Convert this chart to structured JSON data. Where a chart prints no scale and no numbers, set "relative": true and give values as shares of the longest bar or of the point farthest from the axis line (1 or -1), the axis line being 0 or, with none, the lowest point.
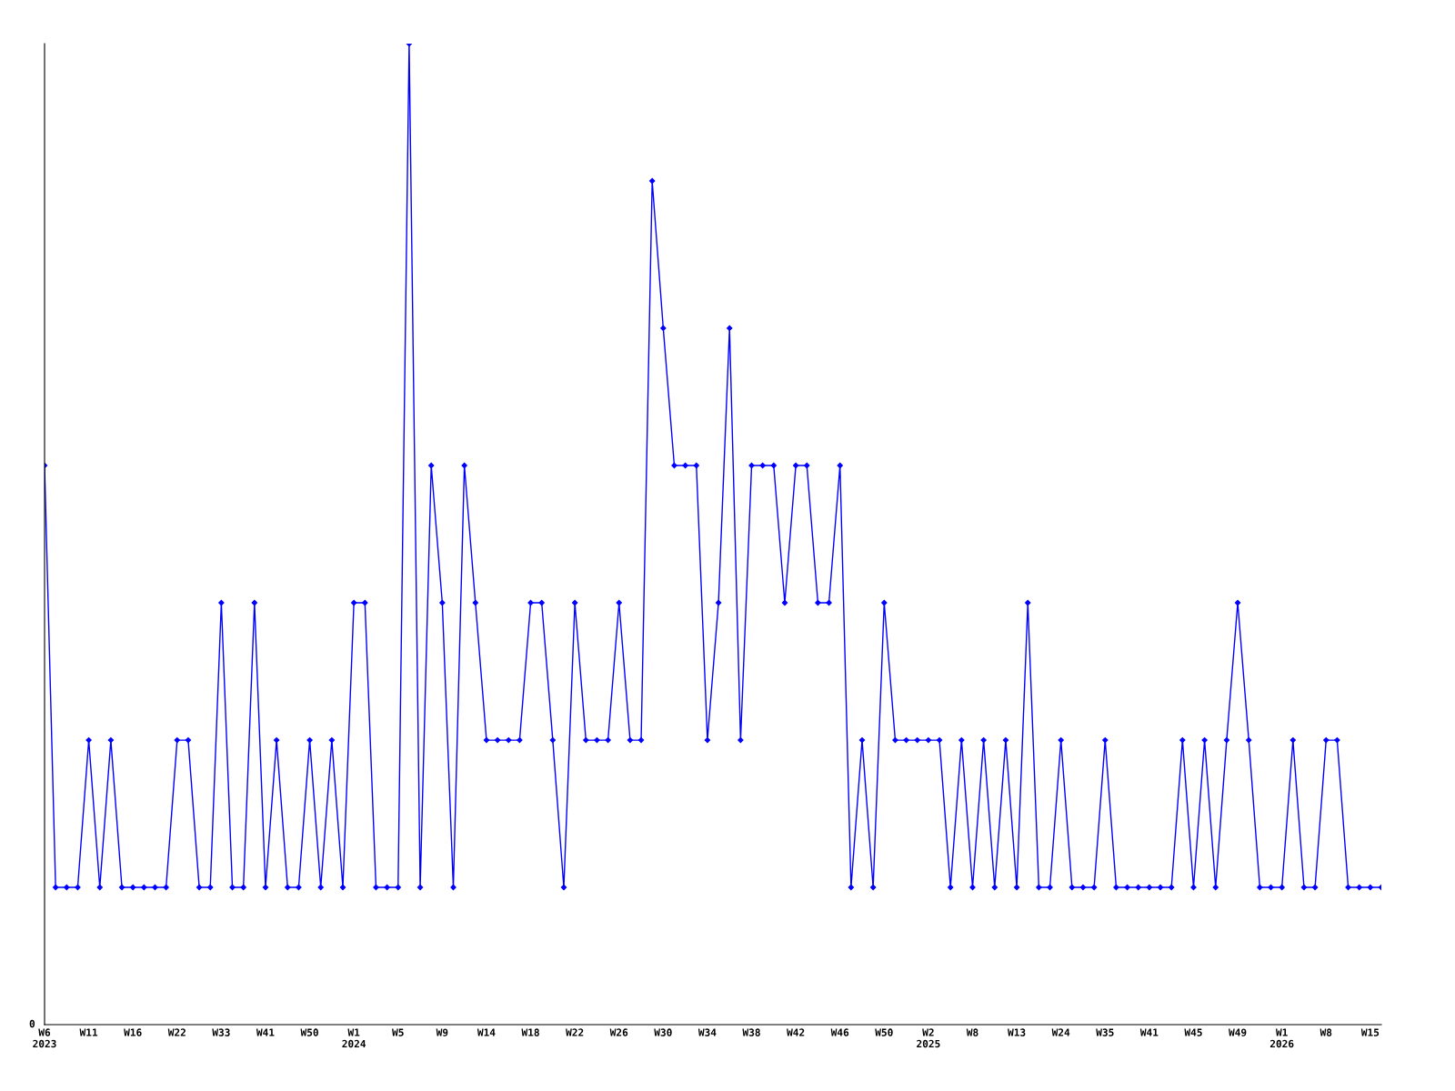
{
  "chart_data": {
    "type": "line",
    "relative": true,
    "marker": "diamond",
    "line_style": "solid",
    "grid": false,
    "legend": false,
    "categories": [
      "W6\n2023",
      null,
      null,
      null,
      "W11",
      null,
      null,
      null,
      "W16",
      null,
      null,
      null,
      "W22",
      null,
      null,
      null,
      "W33",
      null,
      null,
      null,
      "W41",
      null,
      null,
      null,
      "W50",
      null,
      null,
      null,
      "W1\n2024",
      null,
      null,
      null,
      "W5",
      null,
      null,
      null,
      "W9",
      null,
      null,
      null,
      "W14",
      null,
      null,
      null,
      "W18",
      null,
      null,
      null,
      "W22",
      null,
      null,
      null,
      "W26",
      null,
      null,
      null,
      "W30",
      null,
      null,
      null,
      "W34",
      null,
      null,
      null,
      "W38",
      null,
      null,
      null,
      "W42",
      null,
      null,
      null,
      "W46",
      null,
      null,
      null,
      "W50",
      null,
      null,
      null,
      "W2\n2025",
      null,
      null,
      null,
      "W8",
      null,
      null,
      null,
      "W13",
      null,
      null,
      null,
      "W24",
      null,
      null,
      null,
      "W35",
      null,
      null,
      null,
      "W41",
      null,
      null,
      null,
      "W45",
      null,
      null,
      null,
      "W49",
      null,
      null,
      null,
      "W1\n2026",
      null,
      null,
      null,
      "W8",
      null,
      null,
      null,
      "W15",
      null
    ],
    "series": [
      {
        "color": "#0000ff",
        "values": [
          0.57,
          0.14,
          0.14,
          0.14,
          0.29,
          0.14,
          0.29,
          0.14,
          0.14,
          0.14,
          0.14,
          0.14,
          0.29,
          0.29,
          0.14,
          0.14,
          0.43,
          0.14,
          0.14,
          0.43,
          0.14,
          0.29,
          0.14,
          0.14,
          0.29,
          0.14,
          0.29,
          0.14,
          0.43,
          0.43,
          0.14,
          0.14,
          0.14,
          1,
          0.14,
          0.57,
          0.43,
          0.14,
          0.57,
          0.43,
          0.29,
          0.29,
          0.29,
          0.29,
          0.43,
          0.43,
          0.29,
          0.14,
          0.43,
          0.29,
          0.29,
          0.29,
          0.43,
          0.29,
          0.29,
          0.86,
          0.71,
          0.57,
          0.57,
          0.57,
          0.29,
          0.43,
          0.71,
          0.29,
          0.57,
          0.57,
          0.57,
          0.43,
          0.57,
          0.57,
          0.43,
          0.43,
          0.57,
          0.14,
          0.29,
          0.14,
          0.43,
          0.29,
          0.29,
          0.29,
          0.29,
          0.29,
          0.14,
          0.29,
          0.14,
          0.29,
          0.14,
          0.29,
          0.14,
          0.43,
          0.14,
          0.14,
          0.29,
          0.14,
          0.14,
          0.14,
          0.29,
          0.14,
          0.14,
          0.14,
          0.14,
          0.14,
          0.14,
          0.29,
          0.14,
          0.29,
          0.14,
          0.29,
          0.43,
          0.29,
          0.14,
          0.14,
          0.14,
          0.29,
          0.14,
          0.14,
          0.29,
          0.29,
          0.14,
          0.14,
          0.14,
          0.14
        ]
      }
    ],
    "annotations": [
      "0"
    ]
  }
}
